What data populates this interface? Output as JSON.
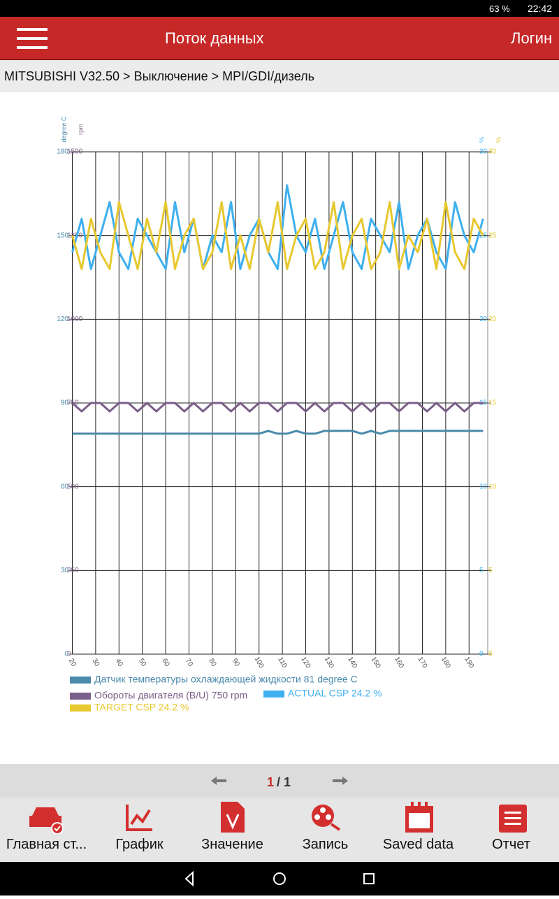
{
  "status_bar": {
    "battery": "63 %",
    "time": "22:42"
  },
  "header": {
    "title": "Поток данных",
    "login": "Логин"
  },
  "breadcrumb": "MITSUBISHI V32.50 > Выключение > MPI/GDI/дизель",
  "chart_data": {
    "type": "line",
    "x": [
      20,
      24,
      28,
      32,
      36,
      40,
      44,
      48,
      52,
      56,
      60,
      64,
      68,
      72,
      76,
      80,
      84,
      88,
      92,
      96,
      100,
      104,
      108,
      112,
      116,
      120,
      124,
      128,
      132,
      136,
      140,
      144,
      148,
      152,
      156,
      160,
      164,
      168,
      172,
      176,
      180,
      184,
      188,
      192,
      196
    ],
    "xlim": [
      20,
      198
    ],
    "xticks": [
      20,
      30,
      40,
      50,
      60,
      70,
      80,
      90,
      100,
      110,
      120,
      130,
      140,
      150,
      160,
      170,
      180,
      190
    ],
    "grid": true,
    "y_axes": [
      {
        "label": "degree C",
        "color": "#4a8aaa",
        "side": "left",
        "lim": [
          0,
          180
        ],
        "ticks": [
          0,
          30,
          60,
          90,
          120,
          150,
          180
        ]
      },
      {
        "label": "rpm",
        "color": "#7a5f8a",
        "side": "left",
        "lim": [
          0,
          1500
        ],
        "ticks": [
          0,
          250,
          500,
          750,
          1000,
          1250,
          1500
        ]
      },
      {
        "label": "%",
        "color": "#3fb0ef",
        "side": "right",
        "lim": [
          0,
          30
        ],
        "ticks": [
          0,
          5,
          10,
          15,
          20,
          25,
          30
        ]
      },
      {
        "label": "%",
        "color": "#e8c830",
        "side": "right",
        "lim": [
          0,
          30
        ],
        "ticks": [
          0,
          5,
          10,
          15,
          20,
          25,
          30
        ]
      }
    ],
    "series": [
      {
        "name": "Датчик температуры охлаждающей жидкости 81 degree C",
        "color": "#4a8aaa",
        "axis": 0,
        "values": [
          79,
          79,
          79,
          79,
          79,
          79,
          79,
          79,
          79,
          79,
          79,
          79,
          79,
          79,
          79,
          79,
          79,
          79,
          79,
          79,
          79,
          80,
          79,
          79,
          80,
          79,
          79,
          80,
          80,
          80,
          80,
          79,
          80,
          79,
          80,
          80,
          80,
          80,
          80,
          80,
          80,
          80,
          80,
          80,
          80
        ]
      },
      {
        "name": "Обороты двигателя (B/U) 750 rpm",
        "color": "#7a5f8a",
        "axis": 1,
        "values": [
          750,
          725,
          750,
          750,
          725,
          750,
          750,
          725,
          750,
          725,
          750,
          750,
          725,
          750,
          725,
          750,
          750,
          725,
          750,
          725,
          750,
          750,
          725,
          750,
          750,
          725,
          750,
          725,
          750,
          750,
          725,
          750,
          725,
          750,
          750,
          725,
          750,
          750,
          725,
          750,
          725,
          750,
          725,
          750,
          750
        ]
      },
      {
        "name": "ACTUAL CSP 24.2 %",
        "color": "#3fb0ef",
        "axis": 2,
        "values": [
          24,
          26,
          23,
          25,
          27,
          24,
          23,
          26,
          25,
          24,
          23,
          27,
          24,
          26,
          23,
          25,
          24,
          27,
          23,
          25,
          26,
          24,
          23,
          28,
          25,
          24,
          26,
          23,
          25,
          27,
          24,
          23,
          26,
          25,
          24,
          27,
          23,
          25,
          26,
          24,
          23,
          27,
          25,
          24,
          26
        ]
      },
      {
        "name": "TARGET CSP 24.2 %",
        "color": "#e8c830",
        "axis": 3,
        "values": [
          25,
          23,
          26,
          24,
          23,
          27,
          25,
          23,
          26,
          24,
          27,
          23,
          25,
          26,
          23,
          24,
          27,
          23,
          25,
          23,
          26,
          24,
          27,
          23,
          25,
          26,
          23,
          24,
          27,
          23,
          25,
          26,
          23,
          24,
          27,
          23,
          25,
          24,
          26,
          23,
          27,
          24,
          23,
          26,
          25
        ]
      }
    ]
  },
  "pagination": {
    "current": "1",
    "separator": "/",
    "total": "1"
  },
  "nav": [
    "Главная ст...",
    "График",
    "Значение",
    "Запись",
    "Saved data",
    "Отчет"
  ]
}
